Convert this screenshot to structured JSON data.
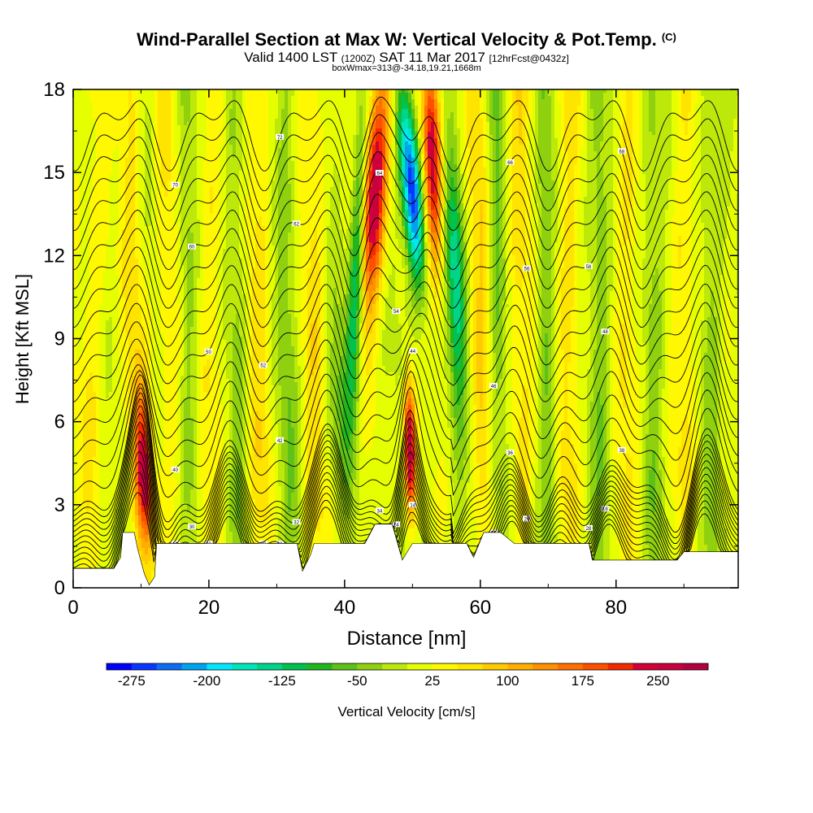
{
  "title": {
    "main": "Wind-Parallel Section at Max W: Vertical Velocity & Pot.Temp.",
    "copyright": "(C)",
    "valid_prefix": "Valid 1400 LST",
    "valid_utc": "(1200Z)",
    "valid_date": "SAT 11 Mar 2017",
    "forecast": "[12hrFcst@0432z]",
    "boxinfo": "boxWmax=313@-34.18,19.21,1668m"
  },
  "chart_data": {
    "type": "heatmap",
    "xlabel": "Distance [nm]",
    "ylabel": "Height [Kft MSL]",
    "xlim": [
      0,
      98
    ],
    "ylim": [
      0,
      18
    ],
    "x_ticks": [
      0,
      20,
      40,
      60,
      80
    ],
    "y_ticks": [
      0,
      3,
      6,
      9,
      12,
      15,
      18
    ],
    "colorbar": {
      "label": "Vertical Velocity [cm/s]",
      "range": [
        -300,
        300
      ],
      "step": 25,
      "tick_labels": [
        "-275",
        "-200",
        "-125",
        "-50",
        "25",
        "100",
        "175",
        "250"
      ],
      "tick_values": [
        -275,
        -200,
        -125,
        -50,
        25,
        100,
        175,
        250
      ],
      "colors": [
        "#0000ff",
        "#0a37ff",
        "#0c6cf2",
        "#00a3ef",
        "#00e6ff",
        "#00e6b9",
        "#00d488",
        "#00c24f",
        "#21b61e",
        "#5ec118",
        "#8fd10e",
        "#bce80a",
        "#e6ff00",
        "#fff800",
        "#ffe400",
        "#ffcb00",
        "#ffae00",
        "#ff9000",
        "#ff7000",
        "#ff4f00",
        "#f22a00",
        "#d2003a",
        "#c8003c",
        "#b20040"
      ]
    },
    "updrafts": [
      {
        "x": 10.5,
        "peak_cm_s": 200
      },
      {
        "x": 45.5,
        "peak_cm_s": 260
      },
      {
        "x": 49.5,
        "peak_cm_s": 313
      },
      {
        "x": 53,
        "peak_cm_s": 240
      }
    ],
    "downdrafts": [
      {
        "x": 42,
        "peak_cm_s": -150
      },
      {
        "x": 50,
        "peak_cm_s": -275
      },
      {
        "x": 56.5,
        "peak_cm_s": -130
      }
    ],
    "terrain_kft": [
      [
        0,
        0.7
      ],
      [
        6,
        0.7
      ],
      [
        7,
        1.1
      ],
      [
        7.3,
        2.0
      ],
      [
        9,
        2.0
      ],
      [
        9.5,
        1.4
      ],
      [
        10.5,
        0.5
      ],
      [
        11.2,
        0.1
      ],
      [
        12,
        0.4
      ],
      [
        12.3,
        1.6
      ],
      [
        15,
        1.6
      ],
      [
        18,
        1.6
      ],
      [
        33,
        1.6
      ],
      [
        33.8,
        0.6
      ],
      [
        35,
        1.2
      ],
      [
        35.5,
        1.6
      ],
      [
        43,
        1.6
      ],
      [
        44.5,
        2.3
      ],
      [
        47,
        2.3
      ],
      [
        48.5,
        1.0
      ],
      [
        50,
        1.6
      ],
      [
        58,
        1.6
      ],
      [
        59,
        1.1
      ],
      [
        60.5,
        2.0
      ],
      [
        63,
        2.0
      ],
      [
        65,
        1.6
      ],
      [
        70,
        1.6
      ],
      [
        76,
        1.6
      ],
      [
        76.5,
        1.0
      ],
      [
        89,
        1.0
      ],
      [
        90,
        1.3
      ],
      [
        98,
        1.3
      ]
    ],
    "theta_contours": {
      "levels_count": 32,
      "units": "C"
    },
    "contour_labels": [
      "10",
      "10",
      "14",
      "16",
      "18",
      "20",
      "22",
      "24",
      "26",
      "28",
      "30",
      "32",
      "34",
      "36",
      "38",
      "40",
      "42",
      "44",
      "46",
      "48",
      "50",
      "52",
      "54",
      "56",
      "58",
      "60",
      "62",
      "64",
      "66",
      "68",
      "70",
      "72"
    ]
  }
}
